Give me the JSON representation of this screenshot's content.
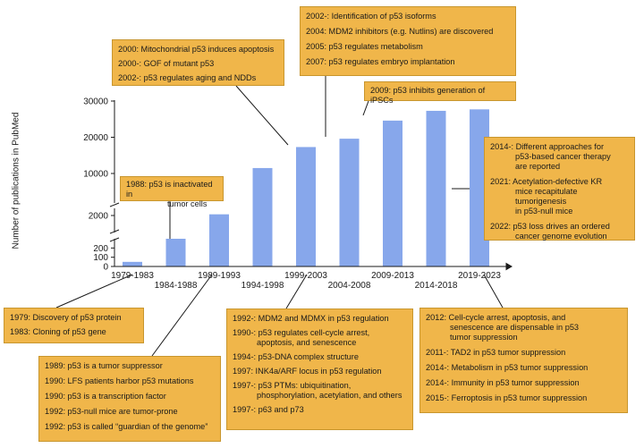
{
  "chart_data": {
    "type": "bar",
    "ylabel": "Number of publications in PubMed",
    "categories": [
      "1979-1983",
      "1984-1988",
      "1989-1993",
      "1994-1998",
      "1999-2003",
      "2004-2008",
      "2009-2013",
      "2014-2018",
      "2019-2023"
    ],
    "values": [
      50,
      300,
      2100,
      11500,
      17300,
      19600,
      24600,
      27300,
      27700
    ],
    "yticks": [
      "0",
      "100",
      "200",
      "2000",
      "10000",
      "20000",
      "30000"
    ],
    "bar_color": "#87a7eb",
    "box_color": "#f0b64a"
  },
  "boxes": {
    "b1988": {
      "line1": "1988: p53 is inactivated in",
      "line2": "tumor cells"
    },
    "b2000": [
      "2000: Mitochondrial p53 induces apoptosis",
      "2000-: GOF of mutant p53",
      "2002-: p53 regulates aging and NDDs"
    ],
    "b2002": [
      "2002-: Identification of p53 isoforms",
      "2004: MDM2 inhibitors (e.g. Nutlins) are discovered",
      "2005: p53 regulates metabolism",
      "2007: p53 regulates embryo implantation"
    ],
    "b2009": "2009: p53 inhibits generation of iPSCs",
    "b2014": {
      "e1": {
        "l1": "2014-: Different approaches for",
        "l2": "p53-based cancer therapy",
        "l3": "are reported"
      },
      "e2": {
        "l1": "2021: Acetylation-defective KR",
        "l2": "mice recapitulate tumorigenesis",
        "l3": "in p53-null mice"
      },
      "e3": {
        "l1": "2022: p53 loss drives an ordered",
        "l2": "cancer genome evolution"
      }
    },
    "b1979": [
      "1979: Discovery of p53 protein",
      "1983: Cloning of p53 gene"
    ],
    "b1989": [
      "1989: p53 is a tumor suppressor",
      "1990: LFS patients harbor p53 mutations",
      "1990: p53 is a transcription factor",
      "1992: p53-null mice are tumor-prone",
      "1992: p53 is called “guardian of the genome”"
    ],
    "b1992": {
      "a": "1992-: MDM2 and MDMX in p53 regulation",
      "b": {
        "l1": "1990-: p53 regulates cell-cycle arrest,",
        "l2": "apoptosis, and senescence"
      },
      "c": "1994-: p53-DNA complex structure",
      "d": "1997: INK4a/ARF locus in p53 regulation",
      "e": {
        "l1": "1997-: p53 PTMs: ubiquitination,",
        "l2": "phosphorylation, acetylation, and others"
      },
      "f": "1997-: p63 and p73"
    },
    "b2012": {
      "a": {
        "l1": "2012: Cell-cycle arrest, apoptosis, and",
        "l2": "senescence are dispensable in p53",
        "l3": "tumor suppression"
      },
      "b": "2011-: TAD2 in p53 tumor suppression",
      "c": "2014-: Metabolism in p53 tumor suppression",
      "d": "2014-: Immunity in p53 tumor suppression",
      "e": "2015-: Ferroptosis in p53 tumor suppression"
    }
  }
}
